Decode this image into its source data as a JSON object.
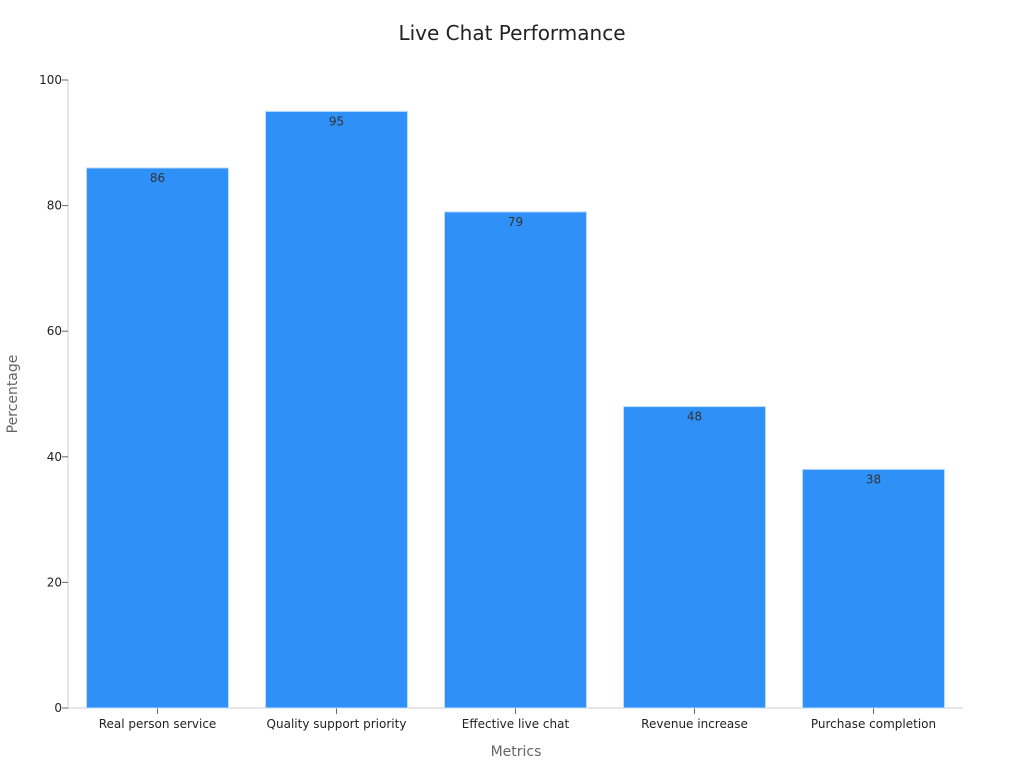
{
  "chart_data": {
    "type": "bar",
    "title": "Live Chat Performance",
    "xlabel": "Metrics",
    "ylabel": "Percentage",
    "categories": [
      "Real person service",
      "Quality support priority",
      "Effective live chat",
      "Revenue increase",
      "Purchase completion"
    ],
    "values": [
      86,
      95,
      79,
      48,
      38
    ],
    "ylim": [
      0,
      100
    ],
    "yticks": [
      0,
      20,
      40,
      60,
      80,
      100
    ],
    "grid": false,
    "bar_color": "#2f91f8"
  }
}
